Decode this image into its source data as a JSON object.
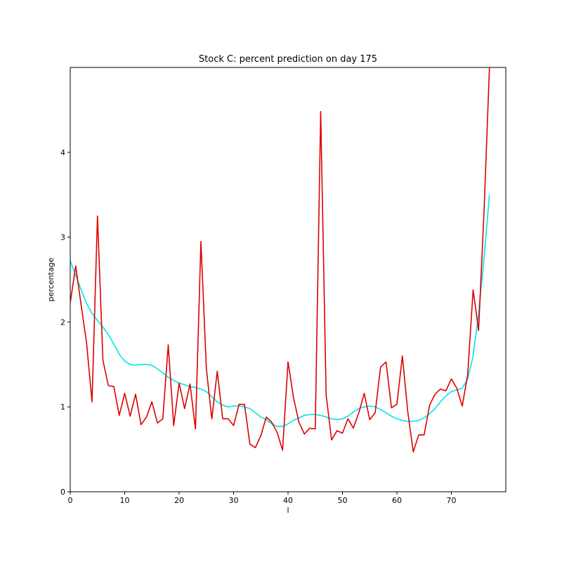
{
  "chart_data": {
    "type": "line",
    "title": "Stock C: percent prediction on day 175",
    "xlabel": "l",
    "ylabel": "percentage",
    "xlim": [
      0,
      80
    ],
    "ylim": [
      0,
      5
    ],
    "xticks": [
      0,
      10,
      20,
      30,
      40,
      50,
      60,
      70
    ],
    "yticks": [
      0,
      1,
      2,
      3,
      4
    ],
    "grid": false,
    "series": [
      {
        "color": "#00e5e5",
        "x": [
          0,
          1,
          2,
          3,
          4,
          5,
          6,
          7,
          8,
          9,
          10,
          11,
          12,
          13,
          14,
          15,
          16,
          17,
          18,
          19,
          20,
          21,
          22,
          23,
          24,
          25,
          26,
          27,
          28,
          29,
          30,
          31,
          32,
          33,
          34,
          35,
          36,
          37,
          38,
          39,
          40,
          41,
          42,
          43,
          44,
          45,
          46,
          47,
          48,
          49,
          50,
          51,
          52,
          53,
          54,
          55,
          56,
          57,
          58,
          59,
          60,
          61,
          62,
          63,
          64,
          65,
          66,
          67,
          68,
          69,
          70,
          71,
          72,
          73,
          74,
          75,
          76,
          77
        ],
        "values": [
          2.72,
          2.55,
          2.38,
          2.22,
          2.1,
          2.02,
          1.94,
          1.85,
          1.74,
          1.62,
          1.54,
          1.5,
          1.49,
          1.5,
          1.5,
          1.49,
          1.45,
          1.4,
          1.35,
          1.31,
          1.28,
          1.26,
          1.24,
          1.23,
          1.21,
          1.18,
          1.12,
          1.06,
          1.02,
          1.0,
          1.01,
          1.01,
          1.0,
          0.98,
          0.93,
          0.88,
          0.85,
          0.8,
          0.77,
          0.77,
          0.8,
          0.84,
          0.87,
          0.9,
          0.91,
          0.91,
          0.9,
          0.88,
          0.86,
          0.85,
          0.86,
          0.89,
          0.94,
          0.98,
          1.0,
          1.01,
          1.0,
          0.97,
          0.93,
          0.89,
          0.86,
          0.84,
          0.83,
          0.83,
          0.84,
          0.87,
          0.92,
          0.98,
          1.06,
          1.13,
          1.18,
          1.2,
          1.22,
          1.33,
          1.6,
          2.1,
          2.75,
          3.5
        ]
      },
      {
        "color": "#dd0000",
        "x": [
          0,
          1,
          2,
          3,
          4,
          5,
          6,
          7,
          8,
          9,
          10,
          11,
          12,
          13,
          14,
          15,
          16,
          17,
          18,
          19,
          20,
          21,
          22,
          23,
          24,
          25,
          26,
          27,
          28,
          29,
          30,
          31,
          32,
          33,
          34,
          35,
          36,
          37,
          38,
          39,
          40,
          41,
          42,
          43,
          44,
          45,
          46,
          47,
          48,
          49,
          50,
          51,
          52,
          53,
          54,
          55,
          56,
          57,
          58,
          59,
          60,
          61,
          62,
          63,
          64,
          65,
          66,
          67,
          68,
          69,
          70,
          71,
          72,
          73,
          74,
          75,
          76,
          77
        ],
        "values": [
          2.23,
          2.66,
          2.2,
          1.75,
          1.06,
          3.25,
          1.55,
          1.25,
          1.24,
          0.9,
          1.16,
          0.89,
          1.15,
          0.79,
          0.88,
          1.06,
          0.81,
          0.86,
          1.73,
          0.78,
          1.28,
          0.98,
          1.27,
          0.74,
          2.95,
          1.45,
          0.86,
          1.42,
          0.86,
          0.86,
          0.78,
          1.03,
          1.03,
          0.56,
          0.52,
          0.66,
          0.88,
          0.82,
          0.7,
          0.49,
          1.53,
          1.11,
          0.82,
          0.68,
          0.75,
          0.74,
          4.48,
          1.14,
          0.61,
          0.72,
          0.69,
          0.86,
          0.75,
          0.93,
          1.16,
          0.85,
          0.93,
          1.47,
          1.53,
          0.99,
          1.03,
          1.6,
          0.94,
          0.47,
          0.67,
          0.67,
          1.02,
          1.15,
          1.21,
          1.19,
          1.33,
          1.22,
          1.01,
          1.38,
          2.38,
          1.9,
          3.3,
          5.0
        ]
      }
    ]
  }
}
